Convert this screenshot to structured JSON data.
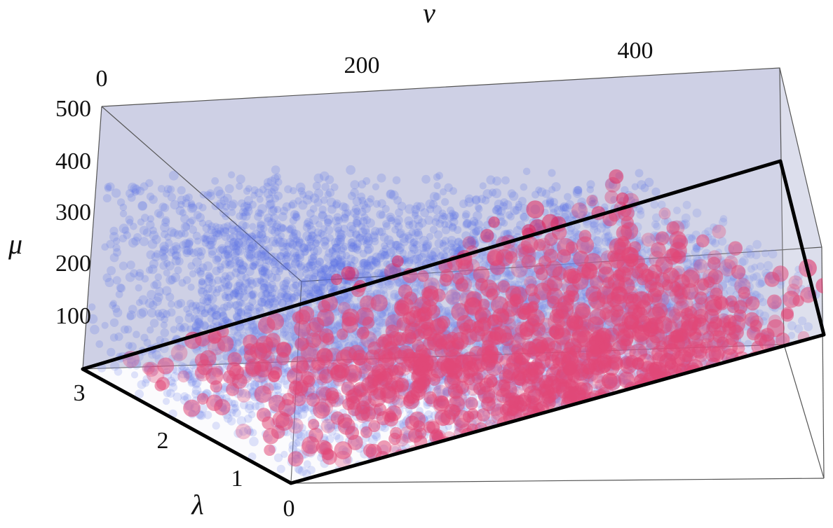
{
  "chart_data": {
    "type": "scatter",
    "title": "",
    "axes": {
      "nu": {
        "label": "ν",
        "range": [
          0,
          500
        ],
        "ticks": [
          "0",
          "200",
          "400"
        ]
      },
      "mu": {
        "label": "μ",
        "range": [
          0,
          500
        ],
        "ticks": [
          "100",
          "200",
          "300",
          "400",
          "500"
        ]
      },
      "lambda": {
        "label": "λ",
        "range": [
          0,
          3
        ],
        "ticks": [
          "0",
          "1",
          "2",
          "3"
        ]
      }
    },
    "series": [
      {
        "color": "#5b73e8",
        "approx_points": 6000,
        "region": "whole box, uniform in ν, μ, λ"
      },
      {
        "color": "#e0245e",
        "approx_points": 2500,
        "region": "lower wedge below the plane μ = ν",
        "marker": "large"
      }
    ],
    "plane": {
      "description": "wedge boundary",
      "equation": "μ = ν",
      "edge_color": "#000000"
    },
    "box_fill": "#c5c8e0"
  }
}
